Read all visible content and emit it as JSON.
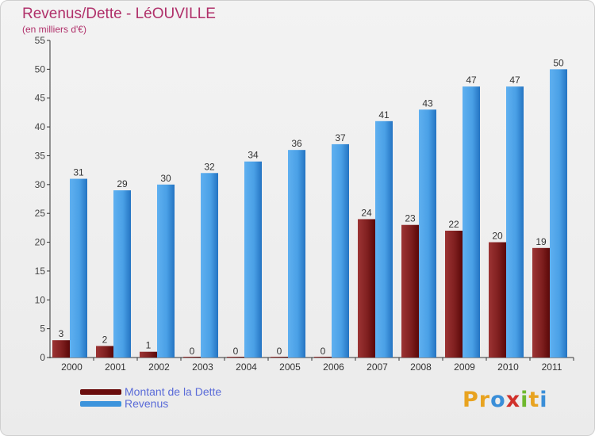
{
  "title": "Revenus/Dette - LéOUVILLE",
  "subtitle": "(en milliers d'€)",
  "colors": {
    "dette": "#7a1212",
    "revenus": "#3d94dc",
    "title": "#b0306a",
    "legend_text": "#5a6bd8"
  },
  "logo": {
    "text": "Proxiti",
    "letter_colors": [
      "#e8a320",
      "#e8a320",
      "#3a8ed8",
      "#d0302a",
      "#6fb82e",
      "#e8a320",
      "#3a8ed8"
    ]
  },
  "chart_data": {
    "type": "bar",
    "categories": [
      "2000",
      "2001",
      "2002",
      "2003",
      "2004",
      "2005",
      "2006",
      "2007",
      "2008",
      "2009",
      "2010",
      "2011"
    ],
    "series": [
      {
        "name": "Montant de la Dette",
        "values": [
          3,
          2,
          1,
          0,
          0,
          0,
          0,
          24,
          23,
          22,
          20,
          19
        ]
      },
      {
        "name": "Revenus",
        "values": [
          31,
          29,
          30,
          32,
          34,
          36,
          37,
          41,
          43,
          47,
          47,
          50
        ]
      }
    ],
    "ylim": [
      0,
      55
    ],
    "yticks": [
      "0",
      "5",
      "10",
      "15",
      "20",
      "25",
      "30",
      "35",
      "40",
      "45",
      "50",
      "55"
    ],
    "grid": false,
    "legend_position": "bottom-left",
    "data_labels": true
  }
}
